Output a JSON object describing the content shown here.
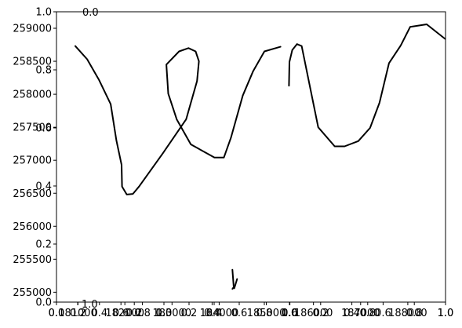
{
  "chart_data": {
    "type": "line",
    "title": "",
    "xlabel": "",
    "ylabel": "",
    "xlim": [
      180550,
      188800
    ],
    "ylim": [
      254850,
      259250
    ],
    "x_ticks": [
      181000,
      182000,
      183000,
      184000,
      185000,
      186000,
      187000,
      188000
    ],
    "x_tick_labels": [
      "181000",
      "182000",
      "183000",
      "184000",
      "185000",
      "186000",
      "187000",
      "188000"
    ],
    "y_ticks": [
      255000,
      255500,
      256000,
      256500,
      257000,
      257500,
      258000,
      258500,
      259000
    ],
    "y_tick_labels": [
      "255000",
      "255500",
      "256000",
      "256500",
      "257000",
      "257500",
      "258000",
      "258500",
      "259000"
    ],
    "overlay_ticks": [
      0.0,
      0.2,
      0.4,
      0.6,
      0.8,
      1.0
    ],
    "overlay_tick_labels": [
      "0.0",
      "0.2",
      "0.4",
      "0.6",
      "0.8",
      "1.0"
    ],
    "stray_labels": {
      "top": "0.0",
      "bottom": "1.0"
    },
    "grid": false,
    "series": [
      {
        "color": "#000000",
        "segments": [
          {
            "x": [
              180950,
              181200,
              181450,
              181700,
              181820,
              181930,
              181940,
              182040,
              182170,
              182300,
              182800,
              183300,
              183530,
              183570,
              183500,
              183350,
              183150,
              182880,
              182920,
              183100,
              183400,
              183900,
              184100,
              184250,
              184500,
              184720,
              184960,
              185300
            ],
            "y": [
              258730,
              258530,
              258220,
              257850,
              257300,
              256930,
              256600,
              256480,
              256490,
              256600,
              257100,
              257620,
              258200,
              258500,
              258650,
              258700,
              258650,
              258450,
              258010,
              257620,
              257240,
              257040,
              257040,
              257340,
              257980,
              258350,
              258650,
              258720
            ]
          },
          {
            "x": [
              185480,
              185490,
              185550,
              185650,
              185750,
              186100,
              186450,
              186660,
              186950,
              187200,
              187400,
              187600,
              187850,
              188050,
              188400,
              188790
            ],
            "y": [
              258130,
              258490,
              258670,
              258760,
              258730,
              257500,
              257210,
              257210,
              257290,
              257490,
              257870,
              258470,
              258740,
              259020,
              259060,
              258840
            ]
          },
          {
            "x": [
              184280,
              184310,
              184310,
              184280
            ],
            "y": [
              255340,
              255060,
              255080,
              255050
            ]
          },
          {
            "x": [
              184320,
              184350,
              184380
            ],
            "y": [
              255060,
              255130,
              255200
            ]
          }
        ]
      }
    ]
  }
}
